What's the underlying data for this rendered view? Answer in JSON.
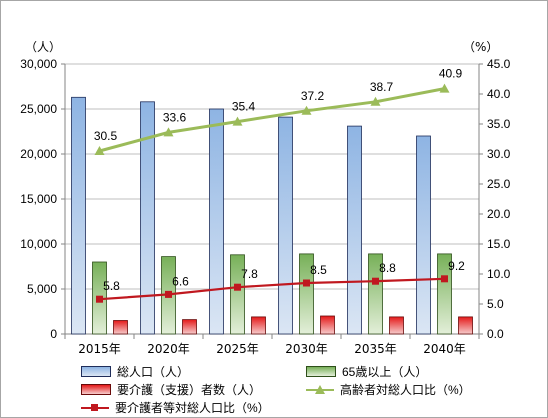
{
  "chart_data": {
    "type": "bar",
    "categories": [
      "2015年",
      "2020年",
      "2025年",
      "2030年",
      "2035年",
      "2040年"
    ],
    "left_axis": {
      "unit_label": "（人）",
      "ylim": [
        0,
        30000
      ],
      "ticks": [
        "0",
        "5,000",
        "10,000",
        "15,000",
        "20,000",
        "25,000",
        "30,000"
      ],
      "tick_values": [
        0,
        5000,
        10000,
        15000,
        20000,
        25000,
        30000
      ]
    },
    "right_axis": {
      "unit_label": "（%）",
      "ylim": [
        0,
        45
      ],
      "ticks": [
        "0.0",
        "5.0",
        "10.0",
        "15.0",
        "20.0",
        "25.0",
        "30.0",
        "35.0",
        "40.0",
        "45.0"
      ],
      "tick_values": [
        0,
        5,
        10,
        15,
        20,
        25,
        30,
        35,
        40,
        45
      ]
    },
    "grid": true,
    "legend_position": "bottom",
    "bar_series": [
      {
        "name": "総人口（人）",
        "values": [
          26300,
          25800,
          25000,
          24100,
          23100,
          22000
        ],
        "colors": {
          "top": "#8eb4e3",
          "bottom": "#dbe6f4",
          "stroke": "#1f2d5a"
        }
      },
      {
        "name": "65歳以上（人）",
        "values": [
          8000,
          8600,
          8800,
          8900,
          8900,
          8900
        ],
        "colors": {
          "top": "#77b058",
          "bottom": "#e3efd9",
          "stroke": "#2e4f1a"
        }
      },
      {
        "name": "要介護（支援）者数（人）",
        "values": [
          1500,
          1600,
          1900,
          2000,
          1900,
          1900
        ],
        "colors": {
          "top": "#e41919",
          "bottom": "#f6cccc",
          "stroke": "#6a0a0a"
        }
      }
    ],
    "line_series": [
      {
        "name": "高齢者対総人口比（%）",
        "values": [
          30.5,
          33.6,
          35.4,
          37.2,
          38.7,
          40.9
        ],
        "labels": [
          "30.5",
          "33.6",
          "35.4",
          "37.2",
          "38.7",
          "40.9"
        ],
        "color": "#9bbb59",
        "marker": "triangle",
        "axis": "right"
      },
      {
        "name": "要介護者等対総人口比（%）",
        "values": [
          5.8,
          6.6,
          7.8,
          8.5,
          8.8,
          9.2
        ],
        "labels": [
          "5.8",
          "6.6",
          "7.8",
          "8.5",
          "8.8",
          "9.2"
        ],
        "color": "#c0181f",
        "marker": "square",
        "axis": "right"
      }
    ]
  }
}
